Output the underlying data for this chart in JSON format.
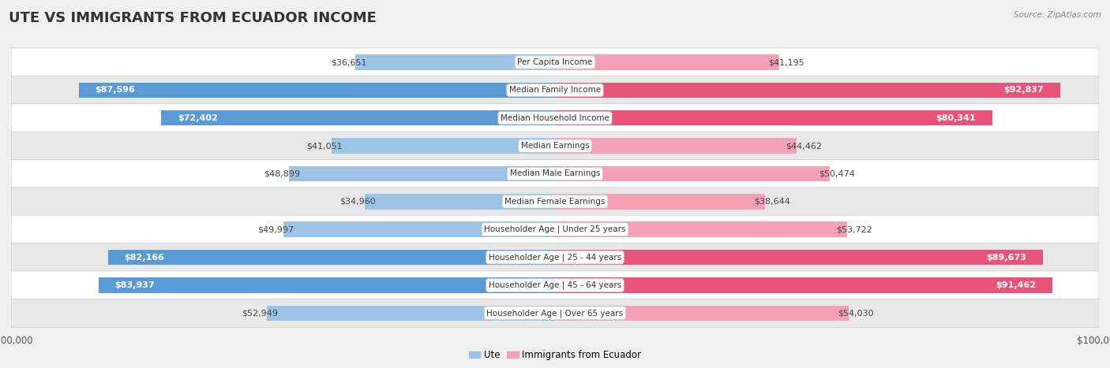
{
  "title": "UTE VS IMMIGRANTS FROM ECUADOR INCOME",
  "source": "Source: ZipAtlas.com",
  "categories": [
    "Per Capita Income",
    "Median Family Income",
    "Median Household Income",
    "Median Earnings",
    "Median Male Earnings",
    "Median Female Earnings",
    "Householder Age | Under 25 years",
    "Householder Age | 25 - 44 years",
    "Householder Age | 45 - 64 years",
    "Householder Age | Over 65 years"
  ],
  "ute_values": [
    36651,
    87596,
    72402,
    41051,
    48899,
    34960,
    49997,
    82166,
    83937,
    52949
  ],
  "ecuador_values": [
    41195,
    92837,
    80341,
    44462,
    50474,
    38644,
    53722,
    89673,
    91462,
    54030
  ],
  "ute_labels": [
    "$36,651",
    "$87,596",
    "$72,402",
    "$41,051",
    "$48,899",
    "$34,960",
    "$49,997",
    "$82,166",
    "$83,937",
    "$52,949"
  ],
  "ecuador_labels": [
    "$41,195",
    "$92,837",
    "$80,341",
    "$44,462",
    "$50,474",
    "$38,644",
    "$53,722",
    "$89,673",
    "$91,462",
    "$54,030"
  ],
  "ute_color_strong": "#5b9bd5",
  "ute_color_light": "#9dc3e6",
  "ecuador_color_strong": "#e8537a",
  "ecuador_color_light": "#f4a0b8",
  "max_value": 100000,
  "background_color": "#f0f0f0",
  "row_colors": [
    "#ffffff",
    "#e8e8e8"
  ],
  "title_fontsize": 13,
  "label_fontsize": 8.5,
  "bar_height": 0.55,
  "inside_threshold": 55000,
  "legend_ute": "Ute",
  "legend_ecuador": "Immigrants from Ecuador"
}
